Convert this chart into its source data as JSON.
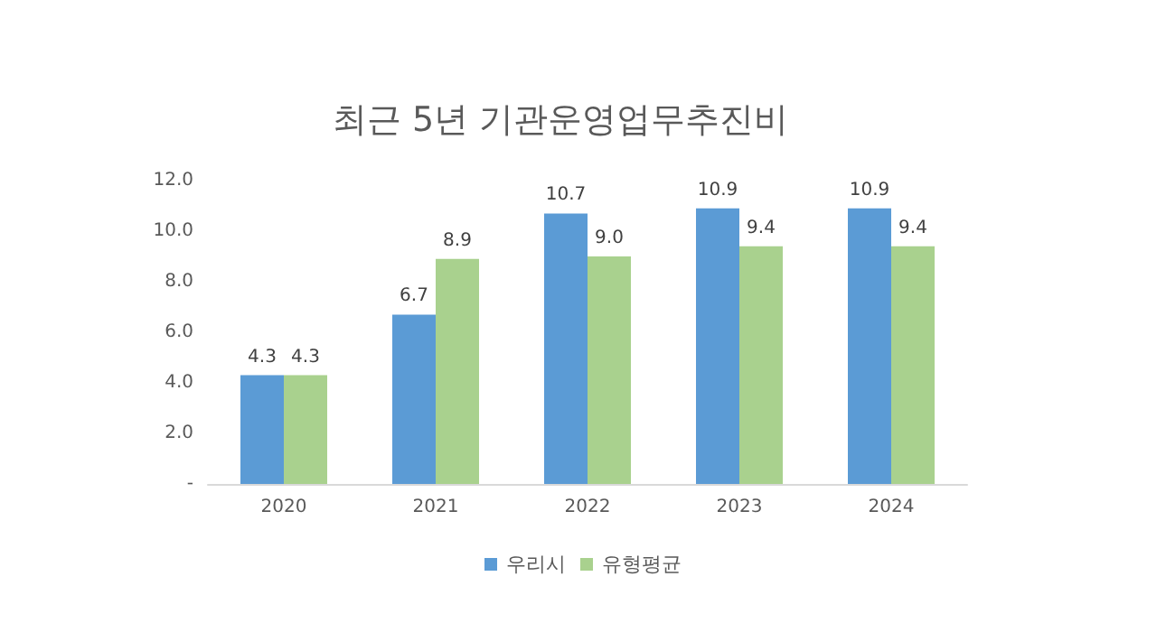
{
  "chart_data": {
    "type": "bar",
    "title": "최근 5년 기관운영업무추진비",
    "categories": [
      "2020",
      "2021",
      "2022",
      "2023",
      "2024"
    ],
    "series": [
      {
        "name": "우리시",
        "color": "#5b9bd5",
        "values": [
          4.3,
          6.7,
          10.7,
          10.9,
          10.9
        ],
        "value_labels": [
          "4.3",
          "6.7",
          "10.7",
          "10.9",
          "10.9"
        ]
      },
      {
        "name": "유형평균",
        "color": "#a9d18e",
        "values": [
          4.3,
          8.9,
          9.0,
          9.4,
          9.4
        ],
        "value_labels": [
          "4.3",
          "8.9",
          "9.0",
          "9.4",
          "9.4"
        ]
      }
    ],
    "ylim": [
      0,
      12
    ],
    "yticks": [
      {
        "value": 0,
        "label": "-"
      },
      {
        "value": 2,
        "label": "2.0"
      },
      {
        "value": 4,
        "label": "4.0"
      },
      {
        "value": 6,
        "label": "6.0"
      },
      {
        "value": 8,
        "label": "8.0"
      },
      {
        "value": 10,
        "label": "10.0"
      },
      {
        "value": 12,
        "label": "12.0"
      }
    ],
    "grid": false,
    "legend": "bottom"
  }
}
